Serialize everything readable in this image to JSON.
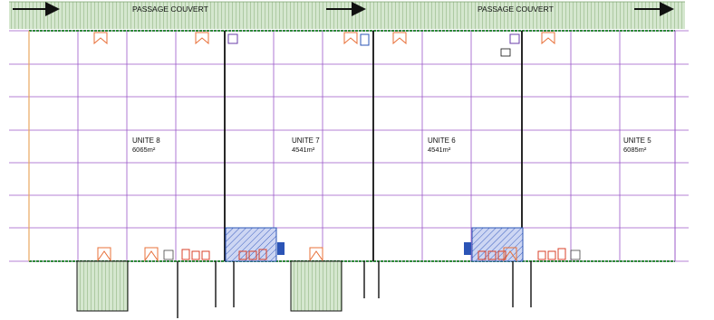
{
  "canopy": {
    "labels": [
      "PASSAGE COUVERT",
      "PASSAGE COUVERT"
    ]
  },
  "units": [
    {
      "name": "UNITE 8",
      "area": "6065m²"
    },
    {
      "name": "UNITE 7",
      "area": "4541m²"
    },
    {
      "name": "UNITE 6",
      "area": "4541m²"
    },
    {
      "name": "UNITE 5",
      "area": "6085m²"
    }
  ],
  "colors": {
    "grid": "#9b59c9",
    "wall": "#111111",
    "canopy_fill": "#cfe3c8",
    "canopy_hatch": "#8fb483",
    "dock_orange": "#e8703a",
    "dock_red": "#d9402a",
    "office_blue": "#2b54b6",
    "office_fill": "#c9d3f2",
    "facade_green": "#2f8a3a"
  },
  "icons": [
    "arrow-right-icon",
    "loading-dock-icon",
    "office-block-icon",
    "electrical-box-icon"
  ]
}
